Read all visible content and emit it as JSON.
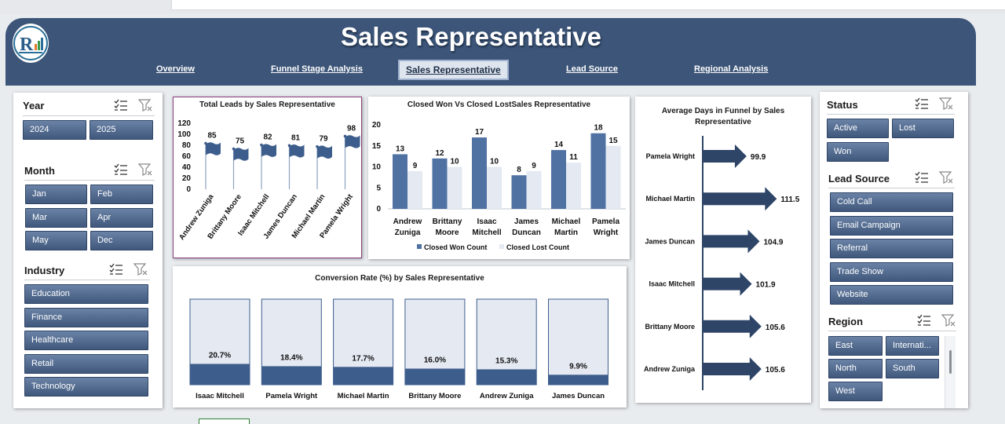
{
  "header": {
    "title": "Sales Representative",
    "nav": [
      {
        "label": "Overview",
        "active": false
      },
      {
        "label": "Funnel Stage Analysis",
        "active": false
      },
      {
        "label": "Sales Representative",
        "active": true
      },
      {
        "label": "Lead Source",
        "active": false
      },
      {
        "label": "Regional Analysis",
        "active": false
      }
    ]
  },
  "left_slicers": {
    "year": {
      "title": "Year",
      "items": [
        "2024",
        "2025"
      ]
    },
    "month": {
      "title": "Month",
      "items": [
        "Jan",
        "Feb",
        "Mar",
        "Apr",
        "May",
        "Dec"
      ]
    },
    "industry": {
      "title": "Industry",
      "items": [
        "Education",
        "Finance",
        "Healthcare",
        "Retail",
        "Technology"
      ]
    }
  },
  "right_slicers": {
    "status": {
      "title": "Status",
      "items": [
        "Active",
        "Lost",
        "Won"
      ]
    },
    "lead_source": {
      "title": "Lead Source",
      "items": [
        "Cold Call",
        "Email Campaign",
        "Referral",
        "Trade Show",
        "Website"
      ]
    },
    "region": {
      "title": "Region",
      "items": [
        "East",
        "Internati...",
        "North",
        "South",
        "West"
      ]
    }
  },
  "icons": {
    "multiselect": "multi-select-icon",
    "clear_filter": "clear-filter-icon"
  },
  "colors": {
    "header": "#3c5578",
    "bar_dark": "#4f72a3",
    "bar_light": "#e4e9f2",
    "slicer": "#4d6890"
  },
  "chart_data": [
    {
      "type": "bar",
      "title": "Total Leads by Sales Representative",
      "categories": [
        "Andrew Zuniga",
        "Brittany Moore",
        "Isaac Mitchell",
        "James Duncan",
        "Michael Martin",
        "Pamela Wright"
      ],
      "values": [
        85,
        75,
        82,
        81,
        79,
        98
      ],
      "ylim": [
        0,
        120
      ],
      "yticks": [
        "0",
        "20",
        "40",
        "60",
        "80",
        "100",
        "120"
      ]
    },
    {
      "type": "bar",
      "title": "Closed Won Vs Closed LostSales Representative",
      "categories": [
        "Andrew Zuniga",
        "Brittany Moore",
        "Isaac Mitchell",
        "James Duncan",
        "Michael Martin",
        "Pamela Wright"
      ],
      "series": [
        {
          "name": "Closed Won Count",
          "values": [
            13,
            12,
            17,
            8,
            14,
            18
          ]
        },
        {
          "name": "Closed Lost Count",
          "values": [
            9,
            10,
            10,
            9,
            11,
            15
          ]
        }
      ],
      "ylim": [
        0,
        20
      ],
      "yticks": [
        "0",
        "5",
        "10",
        "15",
        "20"
      ],
      "legend": "bottom"
    },
    {
      "type": "bar",
      "title": "Average Days in Funnel by Sales Representative",
      "orientation": "horizontal",
      "categories": [
        "Pamela Wright",
        "Michael Martin",
        "James Duncan",
        "Isaac Mitchell",
        "Brittany Moore",
        "Andrew Zuniga"
      ],
      "values": [
        99.9,
        111.5,
        104.9,
        101.9,
        105.6,
        105.6
      ]
    },
    {
      "type": "bar",
      "title": "Conversion Rate (%) by Sales Representative",
      "categories": [
        "Isaac Mitchell",
        "Pamela Wright",
        "Michael Martin",
        "Brittany Moore",
        "Andrew Zuniga",
        "James Duncan"
      ],
      "values": [
        20.7,
        18.4,
        17.7,
        16.0,
        15.3,
        9.9
      ],
      "labels": [
        "20.7%",
        "18.4%",
        "17.7%",
        "16.0%",
        "15.3%",
        "9.9%"
      ]
    }
  ]
}
